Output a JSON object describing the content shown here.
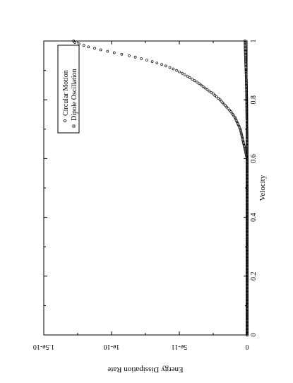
{
  "chart_data": {
    "type": "scatter",
    "orientation": "rotated-90-clockwise",
    "xlabel": "Velocity",
    "ylabel": "Energy Dissipation Rate",
    "xlim": [
      0,
      1
    ],
    "ylim": [
      0,
      1.5e-10
    ],
    "x_ticks": [
      0,
      0.2,
      0.4,
      0.6,
      0.8,
      1
    ],
    "x_tick_labels": [
      "0",
      "0.2",
      "0.4",
      "0.6",
      "0.8",
      "1"
    ],
    "y_ticks": [
      0,
      5e-11,
      1e-10,
      1.5e-10
    ],
    "y_tick_labels": [
      "0",
      "5e-11",
      "1e-10",
      "1.5e-10"
    ],
    "grid": false,
    "legend_position": "top-right",
    "series": [
      {
        "name": "Circular Motion",
        "marker": "circle",
        "x": [
          0,
          0.1,
          0.2,
          0.3,
          0.4,
          0.45,
          0.5,
          0.55,
          0.6,
          0.62,
          0.64,
          0.66,
          0.68,
          0.7,
          0.72,
          0.74,
          0.76,
          0.78,
          0.8,
          0.82,
          0.84,
          0.86,
          0.88,
          0.9,
          0.91,
          0.92,
          0.93,
          0.94,
          0.95,
          0.96,
          0.97,
          0.98,
          0.99,
          0.995,
          1.0
        ],
        "y": [
          0,
          0,
          0,
          0,
          0,
          0,
          0,
          0,
          0,
          1e-12,
          2e-12,
          3e-12,
          4e-12,
          5e-12,
          7e-12,
          9e-12,
          1.2e-11,
          1.6e-11,
          2e-11,
          2.5e-11,
          3.1e-11,
          3.7e-11,
          4.4e-11,
          5.2e-11,
          5.7e-11,
          6.3e-11,
          7e-11,
          7.8e-11,
          8.7e-11,
          9.8e-11,
          1.08e-10,
          1.17e-10,
          1.24e-10,
          1.27e-10,
          1.28e-10
        ]
      },
      {
        "name": "Dipole Oscillation",
        "marker": "square",
        "x": [
          0,
          0.1,
          0.2,
          0.3,
          0.4,
          0.5,
          0.55,
          0.6,
          0.65,
          0.7,
          0.75,
          0.8,
          0.85,
          0.9,
          0.95,
          1.0
        ],
        "y": [
          0,
          0,
          0,
          0,
          0,
          0,
          0,
          0,
          0,
          1e-13,
          2e-13,
          3e-13,
          5e-13,
          8e-13,
          1.2e-12,
          1.5e-12
        ]
      }
    ]
  }
}
